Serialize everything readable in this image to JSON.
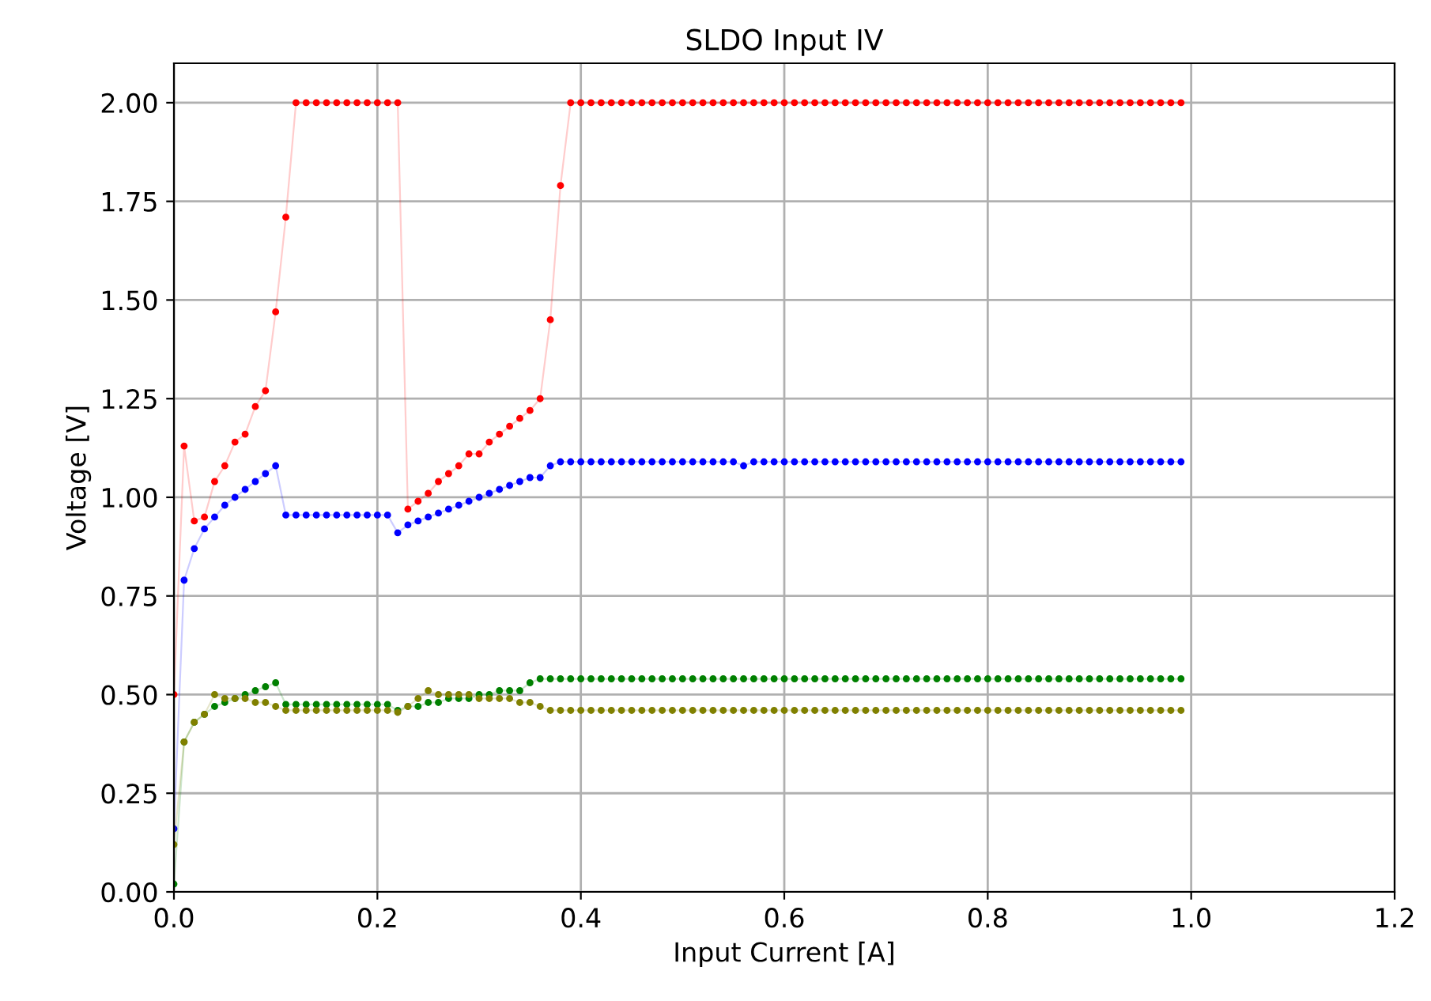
{
  "chart_data": {
    "type": "line",
    "title": "SLDO Input IV",
    "xlabel": "Input Current [A]",
    "ylabel": "Voltage [V]",
    "x": [
      0.0,
      0.01,
      0.02,
      0.03,
      0.04,
      0.05,
      0.06,
      0.07,
      0.08,
      0.09,
      0.1,
      0.11,
      0.12,
      0.13,
      0.14,
      0.15,
      0.16,
      0.17,
      0.18,
      0.19,
      0.2,
      0.21,
      0.22,
      0.23,
      0.24,
      0.25,
      0.26,
      0.27,
      0.28,
      0.29,
      0.3,
      0.31,
      0.32,
      0.33,
      0.34,
      0.35,
      0.36,
      0.37,
      0.38,
      0.39,
      0.4,
      0.41,
      0.42,
      0.43,
      0.44,
      0.45,
      0.46,
      0.47,
      0.48,
      0.49,
      0.5,
      0.51,
      0.52,
      0.53,
      0.54,
      0.55,
      0.56,
      0.57,
      0.58,
      0.59,
      0.6,
      0.61,
      0.62,
      0.63,
      0.64,
      0.65,
      0.66,
      0.67,
      0.68,
      0.69,
      0.7,
      0.71,
      0.72,
      0.73,
      0.74,
      0.75,
      0.76,
      0.77,
      0.78,
      0.79,
      0.8,
      0.81,
      0.82,
      0.83,
      0.84,
      0.85,
      0.86,
      0.87,
      0.88,
      0.89,
      0.9,
      0.91,
      0.92,
      0.93,
      0.94,
      0.95,
      0.96,
      0.97,
      0.98,
      0.99
    ],
    "series": [
      {
        "color": "#ff0000",
        "values": [
          0.5,
          1.13,
          0.94,
          0.95,
          1.04,
          1.08,
          1.14,
          1.16,
          1.23,
          1.27,
          1.47,
          1.71,
          2.0,
          2.0,
          2.0,
          2.0,
          2.0,
          2.0,
          2.0,
          2.0,
          2.0,
          2.0,
          2.0,
          0.97,
          0.99,
          1.01,
          1.04,
          1.06,
          1.08,
          1.11,
          1.11,
          1.14,
          1.16,
          1.18,
          1.2,
          1.22,
          1.25,
          1.45,
          1.79,
          2.0,
          2.0,
          2.0,
          2.0,
          2.0,
          2.0,
          2.0,
          2.0,
          2.0,
          2.0,
          2.0,
          2.0,
          2.0,
          2.0,
          2.0,
          2.0,
          2.0,
          2.0,
          2.0,
          2.0,
          2.0,
          2.0,
          2.0,
          2.0,
          2.0,
          2.0,
          2.0,
          2.0,
          2.0,
          2.0,
          2.0,
          2.0,
          2.0,
          2.0,
          2.0,
          2.0,
          2.0,
          2.0,
          2.0,
          2.0,
          2.0,
          2.0,
          2.0,
          2.0,
          2.0,
          2.0,
          2.0,
          2.0,
          2.0,
          2.0,
          2.0,
          2.0,
          2.0,
          2.0,
          2.0,
          2.0,
          2.0,
          2.0,
          2.0,
          2.0,
          2.0
        ]
      },
      {
        "color": "#0000ff",
        "values": [
          0.16,
          0.79,
          0.87,
          0.92,
          0.95,
          0.98,
          1.0,
          1.02,
          1.04,
          1.06,
          1.08,
          0.955,
          0.955,
          0.955,
          0.955,
          0.955,
          0.955,
          0.955,
          0.955,
          0.955,
          0.955,
          0.955,
          0.91,
          0.93,
          0.94,
          0.95,
          0.96,
          0.97,
          0.98,
          0.99,
          1.0,
          1.01,
          1.02,
          1.03,
          1.04,
          1.05,
          1.05,
          1.08,
          1.09,
          1.09,
          1.09,
          1.09,
          1.09,
          1.09,
          1.09,
          1.09,
          1.09,
          1.09,
          1.09,
          1.09,
          1.09,
          1.09,
          1.09,
          1.09,
          1.09,
          1.09,
          1.08,
          1.09,
          1.09,
          1.09,
          1.09,
          1.09,
          1.09,
          1.09,
          1.09,
          1.09,
          1.09,
          1.09,
          1.09,
          1.09,
          1.09,
          1.09,
          1.09,
          1.09,
          1.09,
          1.09,
          1.09,
          1.09,
          1.09,
          1.09,
          1.09,
          1.09,
          1.09,
          1.09,
          1.09,
          1.09,
          1.09,
          1.09,
          1.09,
          1.09,
          1.09,
          1.09,
          1.09,
          1.09,
          1.09,
          1.09,
          1.09,
          1.09,
          1.09,
          1.09
        ]
      },
      {
        "color": "#008000",
        "values": [
          0.02,
          0.38,
          0.43,
          0.45,
          0.47,
          0.48,
          0.49,
          0.5,
          0.51,
          0.52,
          0.53,
          0.475,
          0.475,
          0.475,
          0.475,
          0.475,
          0.475,
          0.475,
          0.475,
          0.475,
          0.475,
          0.475,
          0.46,
          0.47,
          0.47,
          0.48,
          0.48,
          0.49,
          0.49,
          0.49,
          0.5,
          0.5,
          0.51,
          0.51,
          0.51,
          0.53,
          0.54,
          0.54,
          0.54,
          0.54,
          0.54,
          0.54,
          0.54,
          0.54,
          0.54,
          0.54,
          0.54,
          0.54,
          0.54,
          0.54,
          0.54,
          0.54,
          0.54,
          0.54,
          0.54,
          0.54,
          0.54,
          0.54,
          0.54,
          0.54,
          0.54,
          0.54,
          0.54,
          0.54,
          0.54,
          0.54,
          0.54,
          0.54,
          0.54,
          0.54,
          0.54,
          0.54,
          0.54,
          0.54,
          0.54,
          0.54,
          0.54,
          0.54,
          0.54,
          0.54,
          0.54,
          0.54,
          0.54,
          0.54,
          0.54,
          0.54,
          0.54,
          0.54,
          0.54,
          0.54,
          0.54,
          0.54,
          0.54,
          0.54,
          0.54,
          0.54,
          0.54,
          0.54,
          0.54,
          0.54
        ]
      },
      {
        "color": "#808000",
        "values": [
          0.12,
          0.38,
          0.43,
          0.45,
          0.5,
          0.49,
          0.49,
          0.49,
          0.48,
          0.48,
          0.47,
          0.46,
          0.46,
          0.46,
          0.46,
          0.46,
          0.46,
          0.46,
          0.46,
          0.46,
          0.46,
          0.46,
          0.455,
          0.47,
          0.49,
          0.51,
          0.5,
          0.5,
          0.5,
          0.5,
          0.49,
          0.49,
          0.49,
          0.49,
          0.48,
          0.48,
          0.47,
          0.46,
          0.46,
          0.46,
          0.46,
          0.46,
          0.46,
          0.46,
          0.46,
          0.46,
          0.46,
          0.46,
          0.46,
          0.46,
          0.46,
          0.46,
          0.46,
          0.46,
          0.46,
          0.46,
          0.46,
          0.46,
          0.46,
          0.46,
          0.46,
          0.46,
          0.46,
          0.46,
          0.46,
          0.46,
          0.46,
          0.46,
          0.46,
          0.46,
          0.46,
          0.46,
          0.46,
          0.46,
          0.46,
          0.46,
          0.46,
          0.46,
          0.46,
          0.46,
          0.46,
          0.46,
          0.46,
          0.46,
          0.46,
          0.46,
          0.46,
          0.46,
          0.46,
          0.46,
          0.46,
          0.46,
          0.46,
          0.46,
          0.46,
          0.46,
          0.46,
          0.46,
          0.46,
          0.46
        ]
      }
    ],
    "xlim": [
      0.0,
      1.2
    ],
    "xticks": [
      {
        "value": 0,
        "label": "0.0"
      },
      {
        "value": 0.2,
        "label": "0.2"
      },
      {
        "value": 0.4,
        "label": "0.4"
      },
      {
        "value": 0.6,
        "label": "0.6"
      },
      {
        "value": 0.8,
        "label": "0.8"
      },
      {
        "value": 1.0,
        "label": "1.0"
      },
      {
        "value": 1.2,
        "label": "1.2"
      }
    ],
    "ylim": [
      0.0,
      2.1
    ],
    "yticks": [
      {
        "value": 0,
        "label": "0.00"
      },
      {
        "value": 0.25,
        "label": "0.25"
      },
      {
        "value": 0.5,
        "label": "0.50"
      },
      {
        "value": 0.75,
        "label": "0.75"
      },
      {
        "value": 1.0,
        "label": "1.00"
      },
      {
        "value": 1.25,
        "label": "1.25"
      },
      {
        "value": 1.5,
        "label": "1.50"
      },
      {
        "value": 1.75,
        "label": "1.75"
      },
      {
        "value": 2.0,
        "label": "2.00"
      }
    ],
    "grid": true,
    "marker": "circle",
    "line_style": "solid"
  }
}
